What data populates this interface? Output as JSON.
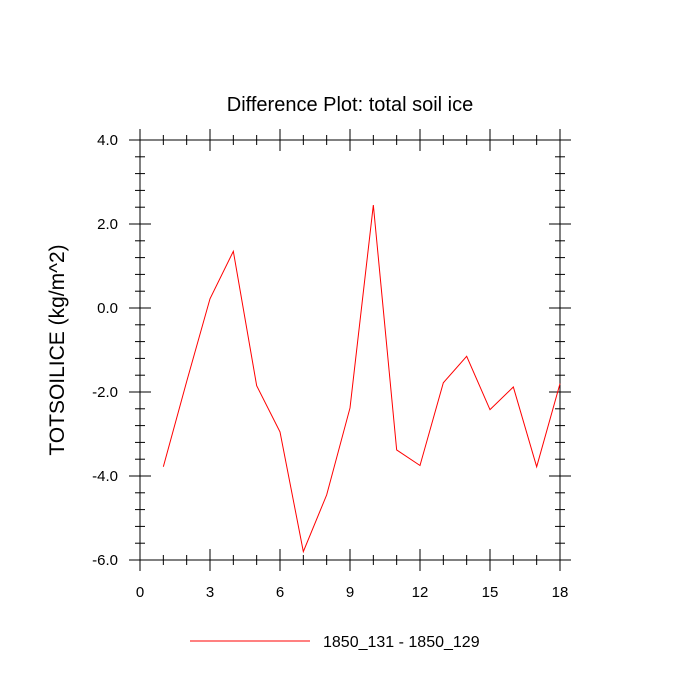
{
  "chart_data": {
    "type": "line",
    "title": "Difference Plot: total soil ice",
    "xlabel": "",
    "ylabel": "TOTSOILICE  (kg/m^2)",
    "xlim": [
      0,
      18
    ],
    "ylim": [
      -6.0,
      4.0
    ],
    "x_ticks": [
      0,
      3,
      6,
      9,
      12,
      15,
      18
    ],
    "y_ticks": [
      -6.0,
      -4.0,
      -2.0,
      0.0,
      2.0,
      4.0
    ],
    "x_tick_labels": [
      "0",
      "3",
      "6",
      "9",
      "12",
      "15",
      "18"
    ],
    "y_tick_labels": [
      "-6.0",
      "-4.0",
      "-2.0",
      "0.0",
      "2.0",
      "4.0"
    ],
    "grid": false,
    "legend_position": "bottom-center",
    "series": [
      {
        "name": "1850_131 - 1850_129",
        "color": "#ff0000",
        "x": [
          1,
          2,
          3,
          4,
          5,
          6,
          7,
          8,
          9,
          10,
          11,
          12,
          13,
          14,
          15,
          16,
          17,
          18
        ],
        "y": [
          -3.78,
          -1.75,
          0.22,
          1.35,
          -1.85,
          -2.95,
          -5.8,
          -4.45,
          -2.38,
          2.45,
          -3.38,
          -3.75,
          -1.78,
          -1.15,
          -2.42,
          -1.88,
          -3.78,
          -1.8
        ]
      }
    ]
  }
}
